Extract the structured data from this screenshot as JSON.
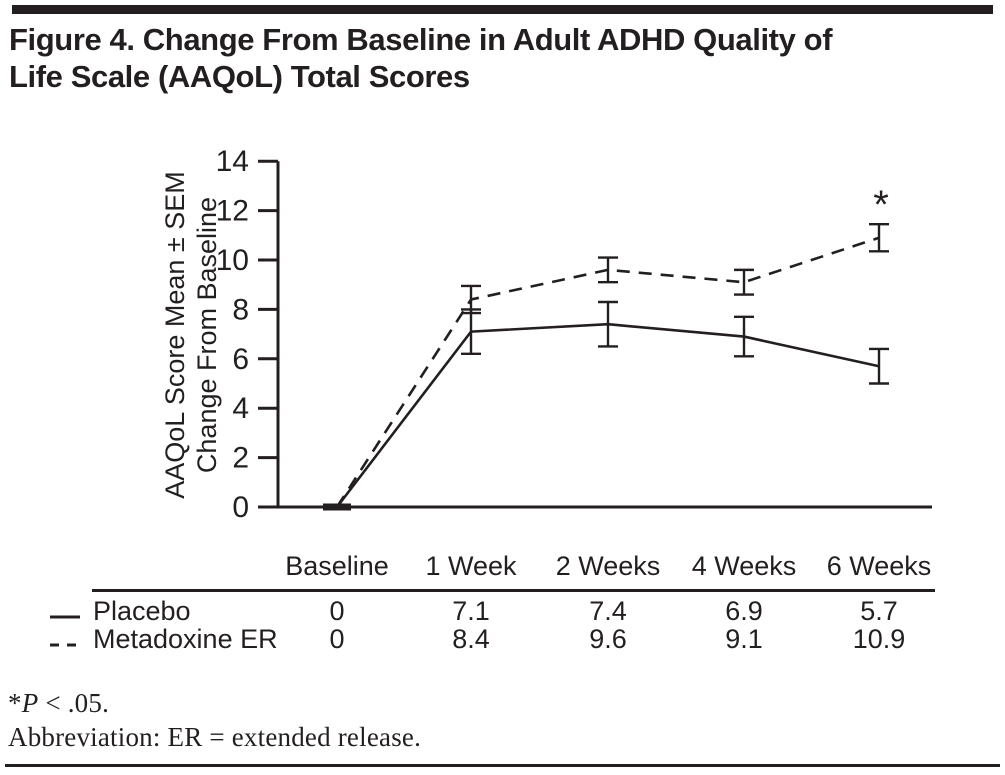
{
  "figure": {
    "title_line1": "Figure 4. Change From Baseline in Adult ADHD Quality of",
    "title_line2": "Life Scale (AAQoL) Total Scores"
  },
  "chart_data": {
    "type": "line",
    "title": "Figure 4. Change From Baseline in Adult ADHD Quality of Life Scale (AAQoL) Total Scores",
    "categories": [
      "Baseline",
      "1 Week",
      "2 Weeks",
      "4 Weeks",
      "6 Weeks"
    ],
    "series": [
      {
        "name": "Placebo",
        "line_style": "solid",
        "values": [
          0,
          7.1,
          7.4,
          6.9,
          5.7
        ],
        "sem": [
          0,
          0.9,
          0.9,
          0.8,
          0.7
        ]
      },
      {
        "name": "Metadoxine ER",
        "line_style": "dashed",
        "values": [
          0,
          8.4,
          9.6,
          9.1,
          10.9
        ],
        "sem": [
          0,
          0.55,
          0.5,
          0.5,
          0.55
        ]
      }
    ],
    "ylabel": "AAQoL Score Mean ± SEM Change From Baseline",
    "ylabel_lines": [
      "AAQoL Score Mean ± SEM",
      "Change From Baseline"
    ],
    "xlabel": "",
    "ylim": [
      0,
      14
    ],
    "ytick_step": 2,
    "ytick_labels": [
      "0",
      "2",
      "4",
      "6",
      "8",
      "10",
      "12",
      "14"
    ],
    "grid": false,
    "error_bar_type": "SEM",
    "legend_position": "table-rows-left",
    "annotation": {
      "text": "*",
      "series": "Metadoxine ER",
      "category": "6 Weeks"
    }
  },
  "footnotes": {
    "significance": {
      "star": "*",
      "p_symbol": "P",
      "rest": " < .05."
    },
    "abbreviation": "Abbreviation: ER = extended release."
  },
  "colors": {
    "ink": "#231f20",
    "background": "#ffffff"
  }
}
